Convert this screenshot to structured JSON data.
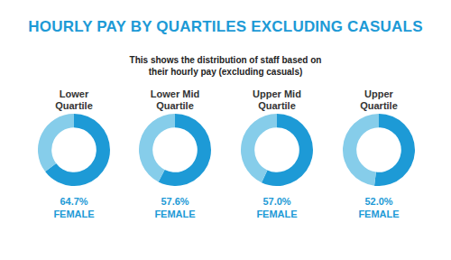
{
  "title": "HOURLY PAY BY QUARTILES EXCLUDING CASUALS",
  "subtitle": "This shows the distribution of staff based on their hourly pay (excluding casuals)",
  "chart_data": [
    {
      "type": "doughnut",
      "title": "Lower Quartile",
      "categories": [
        "FEMALE",
        null
      ],
      "values": [
        64.7,
        35.3
      ],
      "value_labels": [
        "64.7%",
        null
      ],
      "colors": [
        "#1d9ad6",
        "#86cdea"
      ]
    },
    {
      "type": "doughnut",
      "title": "Lower Mid Quartile",
      "categories": [
        "FEMALE",
        null
      ],
      "values": [
        57.6,
        42.4
      ],
      "value_labels": [
        "57.6%",
        null
      ],
      "colors": [
        "#1d9ad6",
        "#86cdea"
      ]
    },
    {
      "type": "doughnut",
      "title": "Upper Mid Quartile",
      "categories": [
        "FEMALE",
        null
      ],
      "values": [
        57.0,
        43.0
      ],
      "value_labels": [
        "57.0%",
        null
      ],
      "colors": [
        "#1d9ad6",
        "#86cdea"
      ]
    },
    {
      "type": "doughnut",
      "title": "Upper Quartile",
      "categories": [
        "FEMALE",
        null
      ],
      "values": [
        52.0,
        48.0
      ],
      "value_labels": [
        "52.0%",
        null
      ],
      "colors": [
        "#1d9ad6",
        "#86cdea"
      ]
    }
  ]
}
